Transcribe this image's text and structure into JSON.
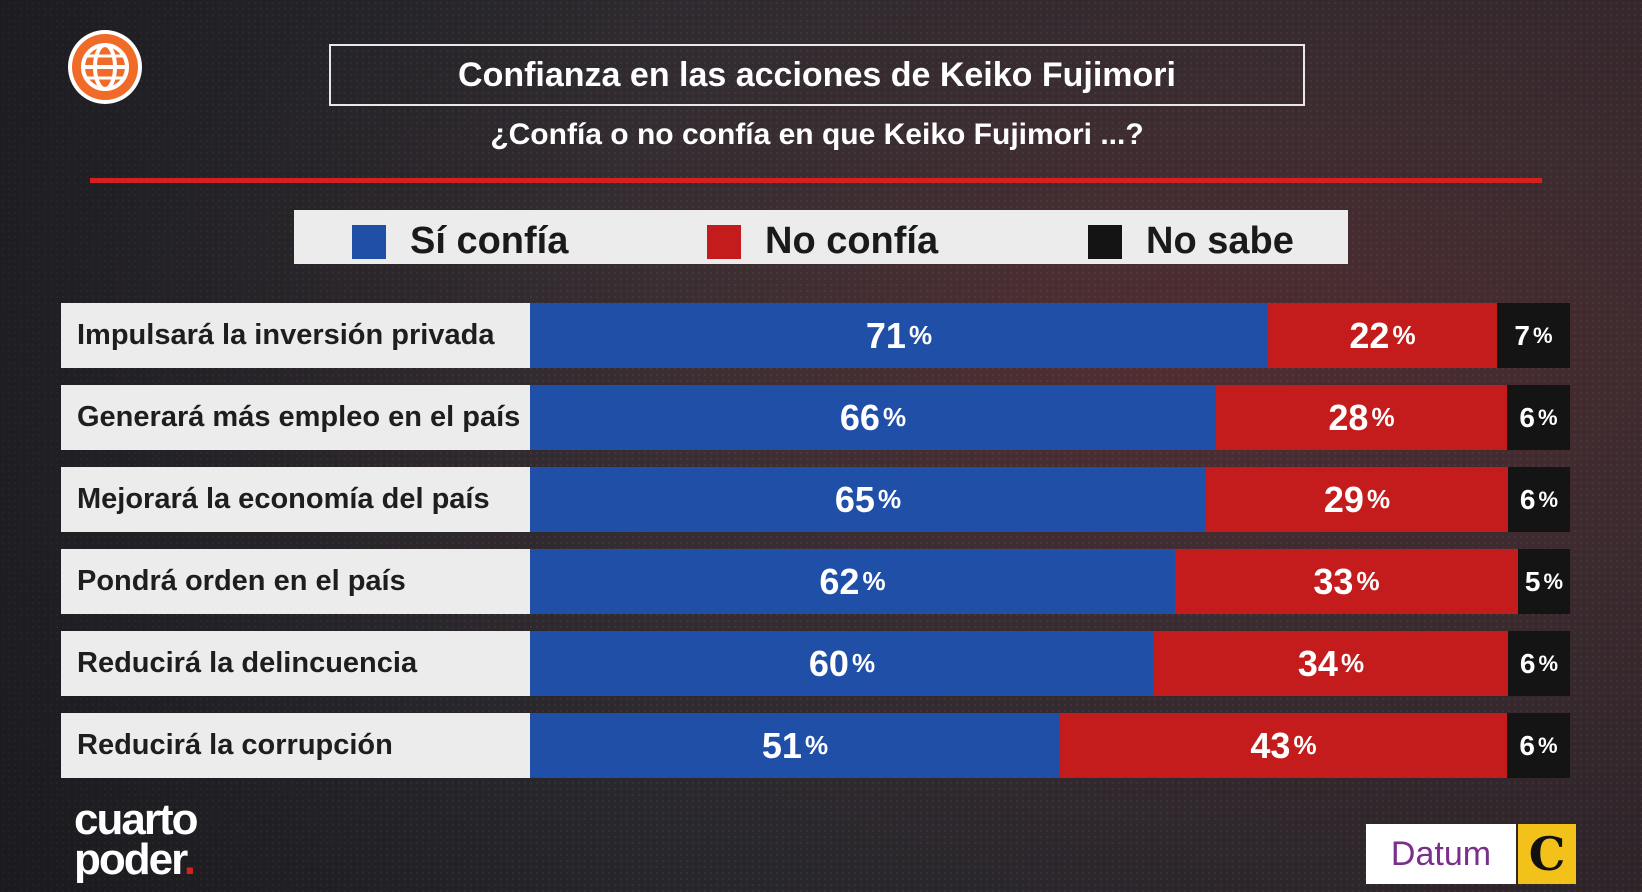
{
  "header": {
    "title": "Confianza en las acciones de Keiko Fujimori",
    "subtitle": "¿Confía o no confía en que Keiko Fujimori ...?"
  },
  "legend": [
    {
      "label": "Sí confía",
      "color": "#1f4fa6"
    },
    {
      "label": "No confía",
      "color": "#c41c1c"
    },
    {
      "label": "No sabe",
      "color": "#141414"
    }
  ],
  "chart_data": {
    "type": "bar",
    "stacked": true,
    "orientation": "horizontal",
    "title": "Confianza en las acciones de Keiko Fujimori",
    "subtitle": "¿Confía o no confía en que Keiko Fujimori ...?",
    "unit": "%",
    "categories": [
      "Impulsará la inversión privada",
      "Generará más empleo en el país",
      "Mejorará la economía del país",
      "Pondrá orden en el país",
      "Reducirá la delincuencia",
      "Reducirá la corrupción"
    ],
    "series": [
      {
        "name": "Sí confía",
        "color": "#1f4fa6",
        "values": [
          71,
          66,
          65,
          62,
          60,
          51
        ]
      },
      {
        "name": "No confía",
        "color": "#c41c1c",
        "values": [
          22,
          28,
          29,
          33,
          34,
          43
        ]
      },
      {
        "name": "No sabe",
        "color": "#141414",
        "values": [
          7,
          6,
          6,
          5,
          6,
          6
        ]
      }
    ],
    "pct_symbol": "%",
    "legend_position": "top",
    "grid": false
  },
  "footer": {
    "brand_line1": "cuarto",
    "brand_line2": "poder",
    "brand_dot": ".",
    "datum_label": "Datum",
    "comercio_label": "C"
  }
}
